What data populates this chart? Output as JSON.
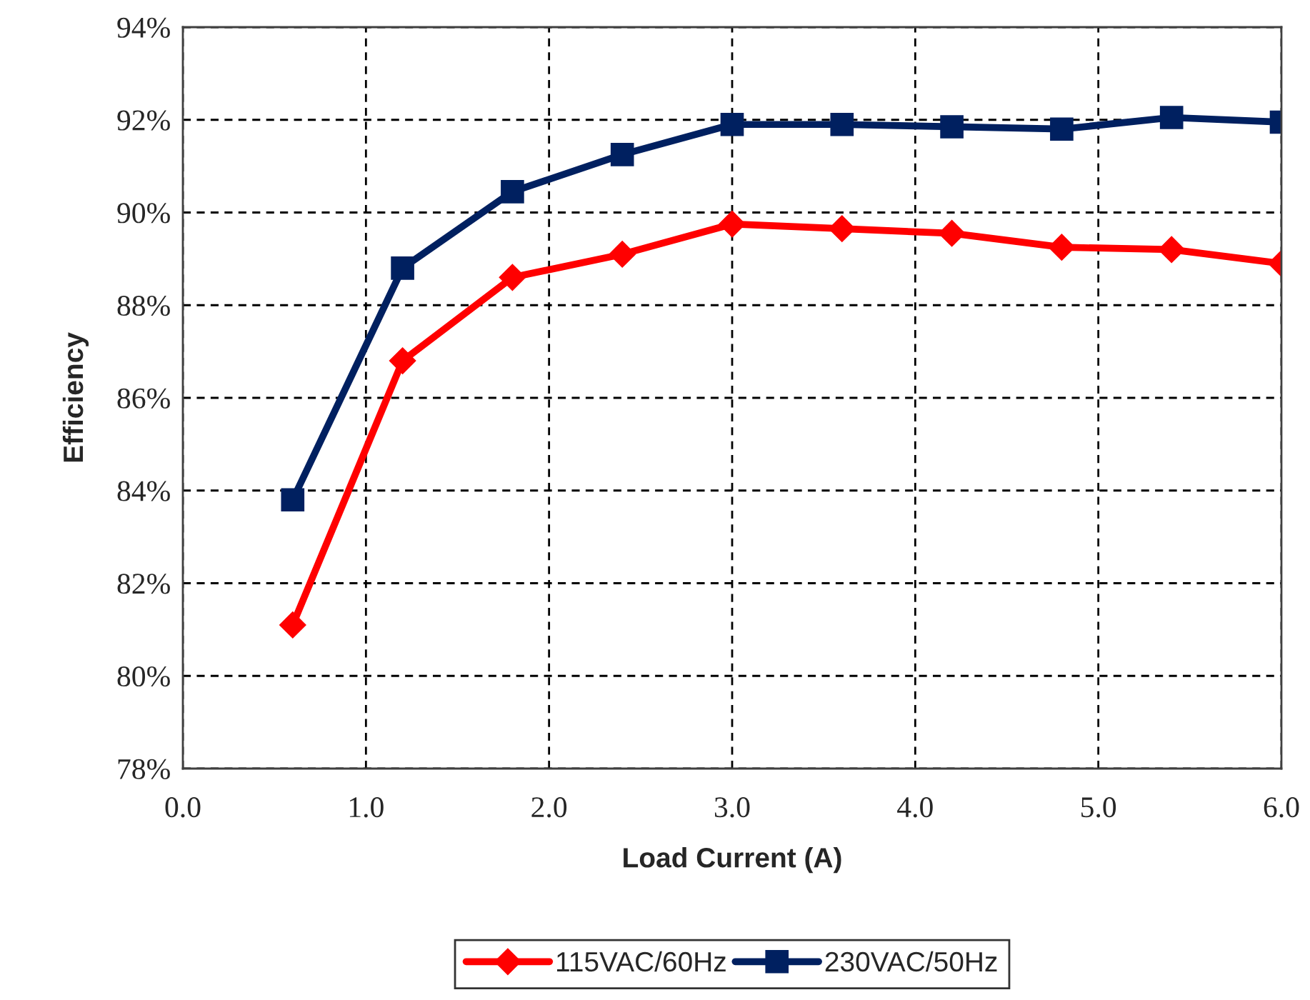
{
  "chart_data": {
    "type": "line",
    "xlabel": "Load Current (A)",
    "ylabel": "Efficiency",
    "x": [
      0.6,
      1.2,
      1.8,
      2.4,
      3.0,
      3.6,
      4.2,
      4.8,
      5.4,
      6.0
    ],
    "series": [
      {
        "name": "115VAC/60Hz",
        "color": "#ff0000",
        "marker": "diamond",
        "values": [
          81.1,
          86.8,
          88.6,
          89.1,
          89.75,
          89.65,
          89.55,
          89.25,
          89.2,
          88.9
        ]
      },
      {
        "name": "230VAC/50Hz",
        "color": "#002060",
        "marker": "square",
        "values": [
          83.8,
          88.8,
          90.45,
          91.25,
          91.9,
          91.9,
          91.85,
          91.8,
          92.05,
          91.95
        ]
      }
    ],
    "xlim": [
      0,
      6
    ],
    "ylim": [
      78,
      94
    ],
    "xticks": [
      {
        "value": 0,
        "label": "0.0"
      },
      {
        "value": 1,
        "label": "1.0"
      },
      {
        "value": 2,
        "label": "2.0"
      },
      {
        "value": 3,
        "label": "3.0"
      },
      {
        "value": 4,
        "label": "4.0"
      },
      {
        "value": 5,
        "label": "5.0"
      },
      {
        "value": 6,
        "label": "6.0"
      }
    ],
    "yticks": [
      {
        "value": 78,
        "label": "78%"
      },
      {
        "value": 80,
        "label": "80%"
      },
      {
        "value": 82,
        "label": "82%"
      },
      {
        "value": 84,
        "label": "84%"
      },
      {
        "value": 86,
        "label": "86%"
      },
      {
        "value": 88,
        "label": "88%"
      },
      {
        "value": 90,
        "label": "90%"
      },
      {
        "value": 92,
        "label": "92%"
      },
      {
        "value": 94,
        "label": "94%"
      }
    ],
    "grid": true,
    "legend": "bottom",
    "line_style": "solid"
  }
}
